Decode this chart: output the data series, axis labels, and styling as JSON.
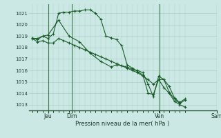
{
  "background_color": "#cce8e4",
  "grid_color": "#aacfca",
  "line_color": "#1a5c2a",
  "marker_color": "#1a5c2a",
  "ylabel_ticks": [
    1013,
    1014,
    1015,
    1016,
    1017,
    1018,
    1019,
    1020,
    1021
  ],
  "ylim": [
    1012.5,
    1021.8
  ],
  "xlim": [
    -4,
    178
  ],
  "xlabel": "Pression niveau de la mer( hPa )",
  "day_labels": [
    "Jeu",
    "Dim",
    "Ven",
    "Sam"
  ],
  "day_vlines": [
    18,
    45,
    145,
    210
  ],
  "series": [
    {
      "x": [
        0,
        6,
        12,
        18,
        24,
        30,
        36,
        42,
        48,
        54,
        60,
        66,
        72,
        78,
        84,
        90,
        96,
        102,
        108,
        114,
        120,
        126,
        132,
        138,
        144,
        150,
        156,
        162,
        168,
        174
      ],
      "y": [
        1018.8,
        1018.8,
        1019.0,
        1018.8,
        1019.2,
        1021.0,
        1021.1,
        1021.1,
        1021.2,
        1021.2,
        1021.3,
        1021.3,
        1021.0,
        1020.5,
        1019.0,
        1018.85,
        1018.7,
        1018.15,
        1016.5,
        1016.2,
        1015.9,
        1015.6,
        1014.0,
        1013.9,
        1015.2,
        1015.2,
        1014.6,
        1013.6,
        1013.2,
        1013.5
      ]
    },
    {
      "x": [
        0,
        6,
        12,
        18,
        24,
        30,
        36,
        42,
        48,
        54,
        60,
        66,
        72,
        78,
        84,
        90,
        96,
        102,
        108,
        114,
        120,
        126,
        132,
        138,
        144,
        150,
        156,
        162,
        168,
        174
      ],
      "y": [
        1018.8,
        1018.5,
        1018.6,
        1018.4,
        1018.4,
        1018.8,
        1018.6,
        1018.4,
        1018.2,
        1018.0,
        1017.8,
        1017.6,
        1017.4,
        1017.2,
        1017.0,
        1016.8,
        1016.6,
        1016.4,
        1016.2,
        1016.0,
        1015.8,
        1015.5,
        1015.2,
        1014.8,
        1015.2,
        1014.5,
        1014.0,
        1013.3,
        1013.0,
        1012.8
      ]
    },
    {
      "x": [
        0,
        6,
        12,
        18,
        30,
        42,
        54,
        66,
        78,
        90,
        96,
        102,
        108,
        114,
        120,
        126,
        132,
        138,
        144,
        150,
        156,
        162,
        168,
        174
      ],
      "y": [
        1018.85,
        1018.7,
        1019.0,
        1019.1,
        1020.4,
        1019.0,
        1018.5,
        1017.5,
        1016.8,
        1016.3,
        1016.5,
        1016.4,
        1016.3,
        1016.1,
        1016.0,
        1015.8,
        1014.8,
        1013.7,
        1015.5,
        1015.2,
        1014.1,
        1013.5,
        1013.1,
        1013.4
      ]
    }
  ]
}
